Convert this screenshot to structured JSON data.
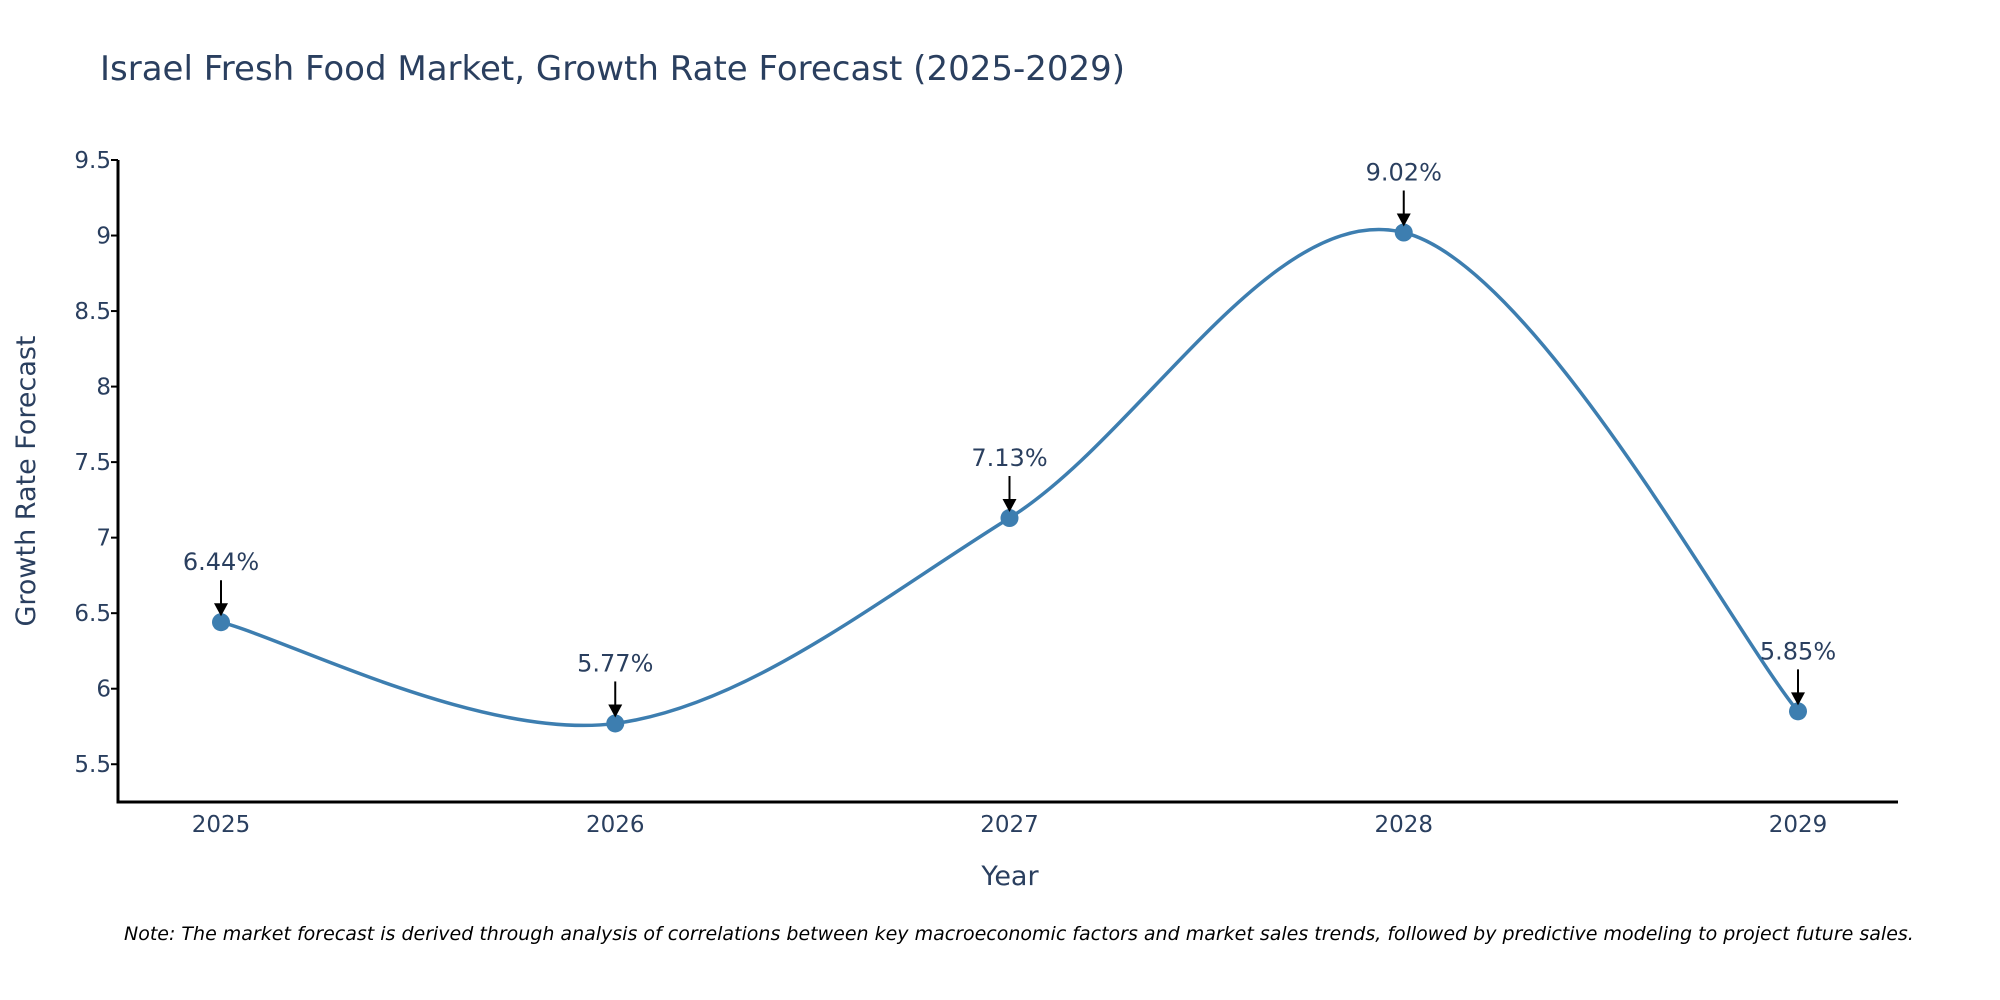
{
  "chart_data": {
    "type": "line",
    "title": "Israel Fresh Food Market, Growth Rate Forecast (2025-2029)",
    "xlabel": "Year",
    "ylabel": "Growth Rate Forecast",
    "categories": [
      "2025",
      "2026",
      "2027",
      "2028",
      "2029"
    ],
    "series": [
      {
        "name": "Growth Rate Forecast",
        "values": [
          6.44,
          5.77,
          7.13,
          9.02,
          5.85
        ],
        "labels": [
          "6.44%",
          "5.77%",
          "7.13%",
          "9.02%",
          "5.85%"
        ]
      }
    ],
    "ylim": [
      5.25,
      9.5
    ],
    "yticks": [
      5.5,
      6,
      6.5,
      7,
      7.5,
      8,
      8.5,
      9,
      9.5
    ],
    "ytick_labels": [
      "5.5",
      "6",
      "6.5",
      "7",
      "7.5",
      "8",
      "8.5",
      "9",
      "9.5"
    ],
    "grid": false,
    "line_shape": "spline",
    "note": "Note: The market forecast is derived through analysis of correlations between key macroeconomic factors and market sales trends, followed by predictive modeling to project future sales."
  },
  "colors": {
    "line": "#3d7eb0",
    "marker": "#3d7eb0",
    "axis": "#000000",
    "text": "#2a3f5f",
    "arrow": "#000000"
  }
}
